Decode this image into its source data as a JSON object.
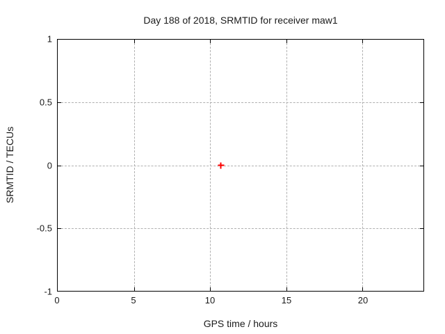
{
  "chart_data": {
    "type": "scatter",
    "title": "Day 188 of 2018, SRMTID for receiver maw1",
    "xlabel": "GPS time / hours",
    "ylabel": "SRMTID / TECUs",
    "xlim": [
      0,
      24
    ],
    "ylim": [
      -1,
      1
    ],
    "x_tick_values": [
      0,
      5,
      10,
      15,
      20
    ],
    "x_tick_labels": [
      "0",
      "5",
      "10",
      "15",
      "20"
    ],
    "y_tick_values": [
      1,
      0.5,
      0,
      -0.5,
      -1
    ],
    "y_tick_labels": [
      "1",
      "0.5",
      "0",
      "-0.5",
      "-1"
    ],
    "grid": true,
    "grid_style": "dashed",
    "legend_position": "none",
    "series": [
      {
        "name": "SRMTID",
        "marker": "plus",
        "color": "#ff0000",
        "points": [
          {
            "x": 10.7,
            "y": 0.0
          }
        ]
      }
    ]
  },
  "colors": {
    "background": "#ffffff",
    "axis": "#000000",
    "grid": "#b0b0b0",
    "text": "#1a1a1a",
    "marker": "#ff0000"
  }
}
